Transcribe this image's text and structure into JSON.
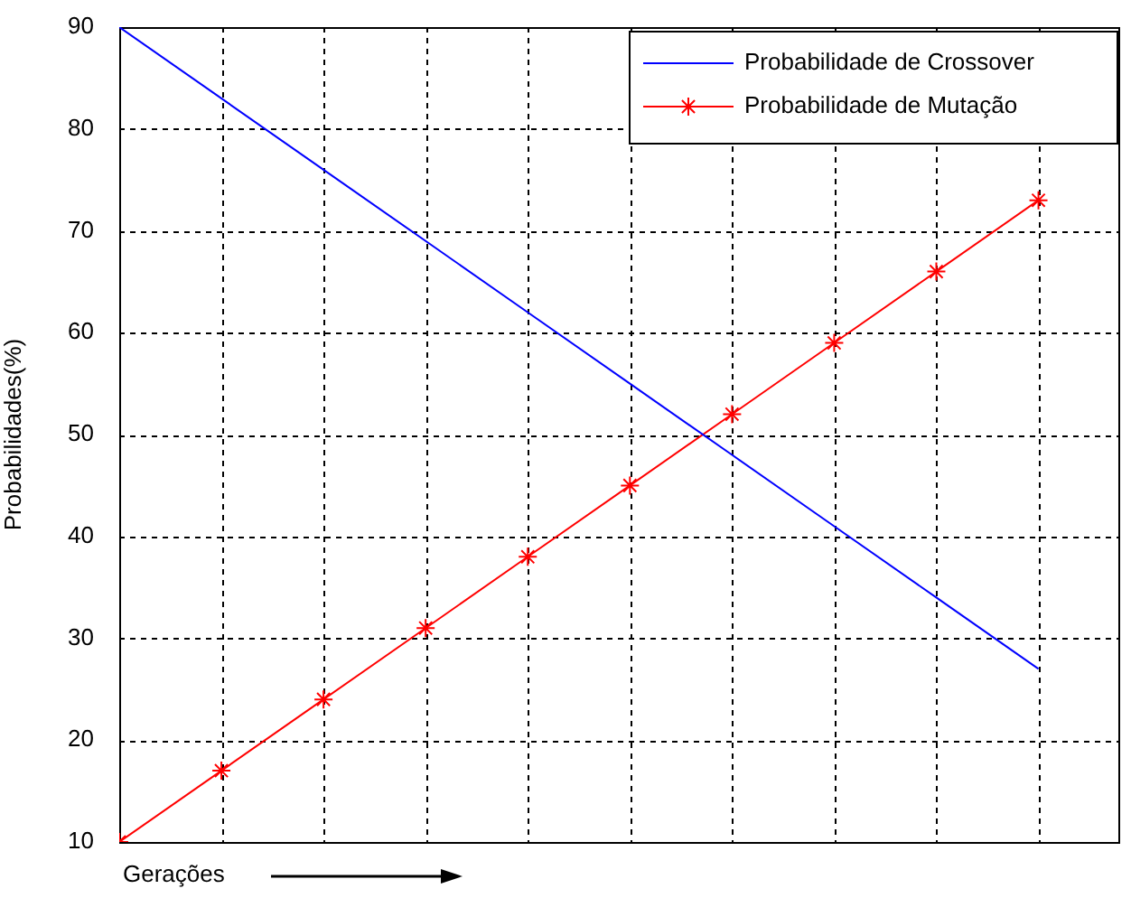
{
  "chart_data": {
    "type": "line",
    "xlabel": "Gerações",
    "ylabel": "Probabilidades(%)",
    "categories": [
      null,
      null,
      null,
      null,
      null,
      null,
      null,
      null,
      null,
      null
    ],
    "ylim": [
      10,
      90
    ],
    "yticks": [
      10,
      20,
      30,
      40,
      50,
      60,
      70,
      80,
      90
    ],
    "grid": true,
    "legend": "top right",
    "tick_labels": "y",
    "series": [
      {
        "name": "Probabilidade de Crossover",
        "color": "#0000ff",
        "marker": "none",
        "values": [
          90,
          83,
          76,
          69,
          62,
          55,
          48,
          41,
          34,
          27
        ]
      },
      {
        "name": "Probabilidade de Mutação",
        "color": "#ff0000",
        "marker": "cross",
        "values": [
          10,
          17,
          24,
          31,
          38,
          45,
          52,
          59,
          66,
          73
        ]
      }
    ]
  }
}
